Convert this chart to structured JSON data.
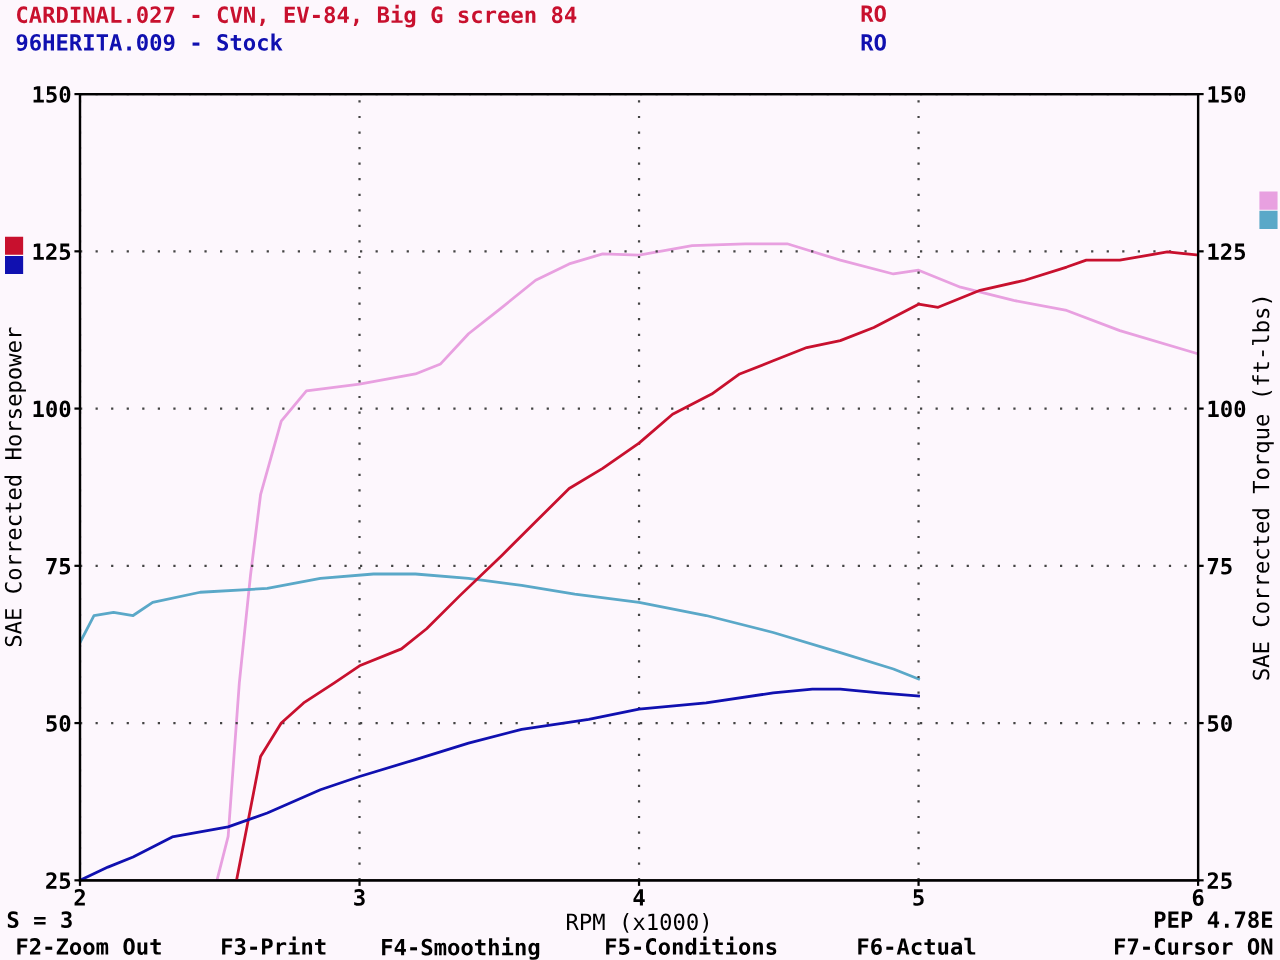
{
  "chart_data": {
    "type": "line",
    "title": "CARDINAL.027 - CVN, EV-84, Big G screen 84",
    "subtitle": "96HERITA.009 - Stock",
    "xlabel": "RPM (x1000)",
    "ylabel": "SAE Corrected Horsepower",
    "y2label": "SAE Corrected Torque (ft-lbs)",
    "xlim": [
      2,
      6
    ],
    "xticks": [
      2,
      3,
      4,
      5,
      6
    ],
    "ylim": [
      25,
      150
    ],
    "yticks": [
      25,
      50,
      75,
      100,
      125,
      150
    ],
    "y2lim": [
      25,
      150
    ],
    "y2ticks": [
      25,
      50,
      75,
      100,
      125,
      150
    ],
    "grid": true,
    "legend": false,
    "line_style": "solid",
    "marker": "none",
    "annotations": [
      "RO",
      "RO",
      "S = 3",
      "PEP 4.78E",
      "F2-Zoom Out",
      "F3-Print",
      "F4-Smoothing",
      "F5-Conditions",
      "F6-Actual",
      "F7-Cursor ON"
    ],
    "series": [
      {
        "color": "#c8102e",
        "x": [
          2.56,
          2.6,
          2.646,
          2.72,
          2.8,
          2.91,
          3.0,
          3.15,
          3.24,
          3.36,
          3.51,
          3.63,
          3.75,
          3.87,
          4.0,
          4.12,
          4.26,
          4.36,
          4.48,
          4.6,
          4.72,
          4.84,
          5.0,
          5.07,
          5.22,
          5.38,
          5.53,
          5.6,
          5.72,
          5.89,
          6.0
        ],
        "values": [
          25,
          34.1,
          44.7,
          50,
          53.2,
          56.4,
          59.1,
          61.8,
          65,
          70.3,
          76.7,
          82,
          87.3,
          90.5,
          94.5,
          99.1,
          102.3,
          105.5,
          107.6,
          109.7,
          110.8,
          112.9,
          116.6,
          116.1,
          118.8,
          120.4,
          122.5,
          123.6,
          123.6,
          124.9,
          124.4
        ]
      },
      {
        "color": "#1010b0",
        "x": [
          2.0,
          2.1,
          2.19,
          2.33,
          2.53,
          2.67,
          2.86,
          3.0,
          3.2,
          3.39,
          3.58,
          3.82,
          4.0,
          4.24,
          4.48,
          4.62,
          4.72,
          4.86,
          5.0
        ],
        "values": [
          25,
          27.1,
          28.7,
          31.9,
          33.5,
          35.7,
          39.4,
          41.5,
          44.2,
          46.8,
          49,
          50.6,
          52.2,
          53.2,
          54.8,
          55.4,
          55.4,
          54.8,
          54.3
        ]
      },
      {
        "color": "#e8a0e0",
        "axis": "y2",
        "x": [
          2.49,
          2.53,
          2.57,
          2.61,
          2.646,
          2.72,
          2.81,
          3.0,
          3.2,
          3.29,
          3.39,
          3.51,
          3.63,
          3.75,
          3.87,
          4.0,
          4.19,
          4.38,
          4.53,
          4.72,
          4.91,
          5.0,
          5.15,
          5.34,
          5.53,
          5.72,
          6.0
        ],
        "values": [
          25,
          32,
          56.4,
          73.5,
          86.3,
          98,
          102.8,
          103.9,
          105.5,
          107.1,
          111.9,
          116.1,
          120.4,
          123,
          124.6,
          124.4,
          125.9,
          126.2,
          126.2,
          123.6,
          121.4,
          122,
          119.3,
          117.2,
          115.6,
          112.4,
          108.7
        ]
      },
      {
        "color": "#5aa8c8",
        "axis": "y2",
        "x": [
          2.0,
          2.05,
          2.12,
          2.19,
          2.26,
          2.43,
          2.67,
          2.86,
          3.05,
          3.2,
          3.39,
          3.58,
          3.77,
          4.0,
          4.24,
          4.48,
          4.72,
          4.91,
          5.0
        ],
        "values": [
          62.8,
          67.1,
          67.6,
          67.1,
          69.2,
          70.8,
          71.4,
          73,
          73.7,
          73.7,
          73,
          71.9,
          70.5,
          69.2,
          67.1,
          64.4,
          61.2,
          58.6,
          57
        ]
      }
    ]
  }
}
